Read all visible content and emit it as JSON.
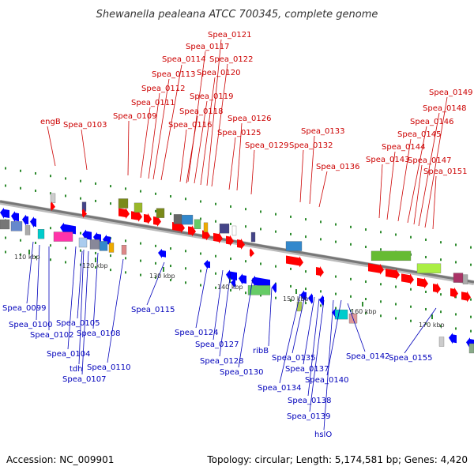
{
  "title": "Shewanella pealeana ATCC 700345, complete genome",
  "accession": "Accession: NC_009901",
  "summary": "Topology: circular; Length: 5,174,581 bp; Genes: 4,420",
  "colors": {
    "top_label": "#cc0000",
    "bottom_label": "#0000bb",
    "backbone": "#888888"
  },
  "ticks": [
    {
      "label": "110 kbp"
    },
    {
      "label": "120 kbp"
    },
    {
      "label": "130 kbp"
    },
    {
      "label": "140 kbp"
    },
    {
      "label": "150 kbp"
    },
    {
      "label": "160 kbp"
    },
    {
      "label": "170 kbp"
    }
  ],
  "top_labels": [
    "engB",
    "Spea_0103",
    "Spea_0109",
    "Spea_0111",
    "Spea_0112",
    "Spea_0113",
    "Spea_0114",
    "Spea_0116",
    "Spea_0117",
    "Spea_0118",
    "Spea_0119",
    "Spea_0120",
    "Spea_0121",
    "Spea_0122",
    "Spea_0125",
    "Spea_0126",
    "Spea_0129",
    "Spea_0132",
    "Spea_0133",
    "Spea_0136",
    "Spea_0143",
    "Spea_0144",
    "Spea_0145",
    "Spea_0146",
    "Spea_0147",
    "Spea_0148",
    "Spea_0149",
    "Spea_0151"
  ],
  "bottom_labels": [
    "Spea_0099",
    "Spea_0100",
    "Spea_0102",
    "Spea_0104",
    "Spea_0105",
    "tdh",
    "Spea_0107",
    "Spea_0108",
    "Spea_0110",
    "Spea_0115",
    "Spea_0124",
    "Spea_0127",
    "Spea_0128",
    "Spea_0130",
    "ribB",
    "Spea_0134",
    "Spea_0135",
    "Spea_0137",
    "Spea_0138",
    "Spea_0139",
    "hslO",
    "Spea_0140",
    "Spea_0142",
    "Spea_0155"
  ]
}
